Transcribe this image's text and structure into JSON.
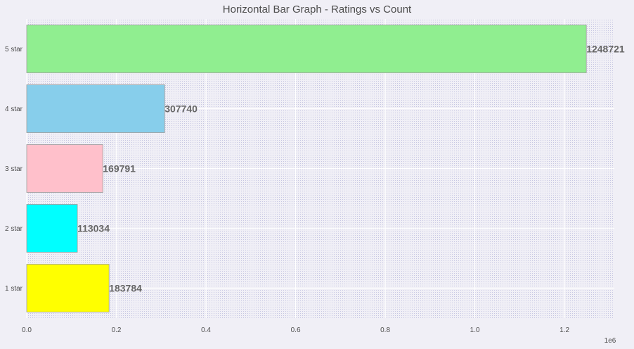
{
  "chart_data": {
    "type": "bar",
    "orientation": "horizontal",
    "title": "Horizontal Bar Graph - Ratings vs Count",
    "xlabel": "",
    "ylabel": "",
    "categories": [
      "1 star",
      "2 star",
      "3 star",
      "4 star",
      "5 star"
    ],
    "values": [
      183784,
      113034,
      169791,
      307740,
      1248721
    ],
    "value_labels": [
      "183784",
      "113034",
      "169791",
      "307740",
      "1248721"
    ],
    "bar_colors": [
      "#ffff00",
      "#00ffff",
      "#ffc0cb",
      "#87ceeb",
      "#90ee90"
    ],
    "xlim": [
      0,
      1311157
    ],
    "x_ticks": [
      0,
      200000,
      400000,
      600000,
      800000,
      1000000,
      1200000
    ],
    "x_tick_labels": [
      "0.0",
      "0.2",
      "0.4",
      "0.6",
      "0.8",
      "1.0",
      "1.2"
    ],
    "x_offset_label": "1e6",
    "grid": true,
    "legend": "none",
    "background": "#f0eff6",
    "dot_color": "#b3b3d9"
  }
}
